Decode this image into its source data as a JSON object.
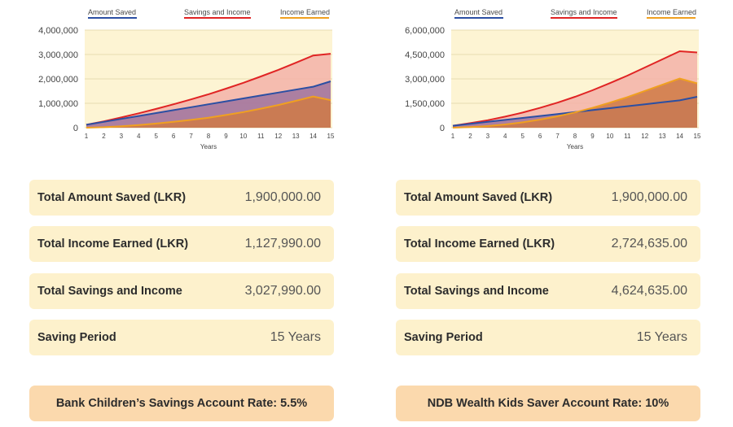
{
  "chart_data": [
    {
      "type": "area",
      "x": [
        1,
        2,
        3,
        4,
        5,
        6,
        7,
        8,
        9,
        10,
        11,
        12,
        13,
        14,
        15
      ],
      "xlabel": "Years",
      "ylim": [
        0,
        4000000
      ],
      "yticks": [
        0,
        1000000,
        2000000,
        3000000,
        4000000
      ],
      "ytick_labels": [
        "0",
        "1,000,000",
        "2,000,000",
        "3,000,000",
        "4,000,000"
      ],
      "grid": true,
      "legend_position": "top",
      "series": [
        {
          "name": "Amount Saved",
          "color": "#2b4fa3",
          "values": [
            120000,
            240000,
            360000,
            480000,
            600000,
            720000,
            840000,
            960000,
            1080000,
            1200000,
            1320000,
            1440000,
            1560000,
            1680000,
            1900000
          ]
        },
        {
          "name": "Savings and Income",
          "color": "#e02424",
          "values": [
            120000,
            260000,
            420000,
            590000,
            770000,
            960000,
            1160000,
            1370000,
            1600000,
            1840000,
            2100000,
            2370000,
            2660000,
            2960000,
            3027990
          ]
        },
        {
          "name": "Income Earned",
          "color": "#f0a020",
          "values": [
            0,
            20000,
            60000,
            110000,
            170000,
            240000,
            320000,
            410000,
            520000,
            640000,
            780000,
            930000,
            1100000,
            1280000,
            1127990
          ]
        }
      ]
    },
    {
      "type": "area",
      "x": [
        1,
        2,
        3,
        4,
        5,
        6,
        7,
        8,
        9,
        10,
        11,
        12,
        13,
        14,
        15
      ],
      "xlabel": "Years",
      "ylim": [
        0,
        6000000
      ],
      "yticks": [
        0,
        1500000,
        3000000,
        4500000,
        6000000
      ],
      "ytick_labels": [
        "0",
        "1,500,000",
        "3,000,000",
        "4,500,000",
        "6,000,000"
      ],
      "grid": true,
      "legend_position": "top",
      "series": [
        {
          "name": "Amount Saved",
          "color": "#2b4fa3",
          "values": [
            120000,
            240000,
            360000,
            480000,
            600000,
            720000,
            840000,
            960000,
            1080000,
            1200000,
            1320000,
            1440000,
            1560000,
            1680000,
            1900000
          ]
        },
        {
          "name": "Savings and Income",
          "color": "#e02424",
          "values": [
            120000,
            280000,
            460000,
            680000,
            930000,
            1220000,
            1540000,
            1900000,
            2300000,
            2740000,
            3200000,
            3700000,
            4200000,
            4700000,
            4624635
          ]
        },
        {
          "name": "Income Earned",
          "color": "#f0a020",
          "values": [
            0,
            40000,
            100000,
            200000,
            330000,
            500000,
            700000,
            940000,
            1220000,
            1540000,
            1880000,
            2260000,
            2640000,
            3020000,
            2724635
          ]
        }
      ]
    }
  ],
  "panels": [
    {
      "stats": [
        {
          "label": "Total Amount Saved (LKR)",
          "value": "1,900,000.00"
        },
        {
          "label": "Total Income Earned (LKR)",
          "value": "1,127,990.00"
        },
        {
          "label": "Total Savings and Income",
          "value": "3,027,990.00"
        },
        {
          "label": "Saving Period",
          "value": "15 Years"
        }
      ],
      "rate": "Bank Children’s Savings Account Rate: 5.5%"
    },
    {
      "stats": [
        {
          "label": "Total Amount Saved (LKR)",
          "value": "1,900,000.00"
        },
        {
          "label": "Total Income Earned (LKR)",
          "value": "2,724,635.00"
        },
        {
          "label": "Total Savings and Income",
          "value": "4,624,635.00"
        },
        {
          "label": "Saving Period",
          "value": "15 Years"
        }
      ],
      "rate": "NDB Wealth Kids Saver Account Rate: 10%"
    }
  ]
}
